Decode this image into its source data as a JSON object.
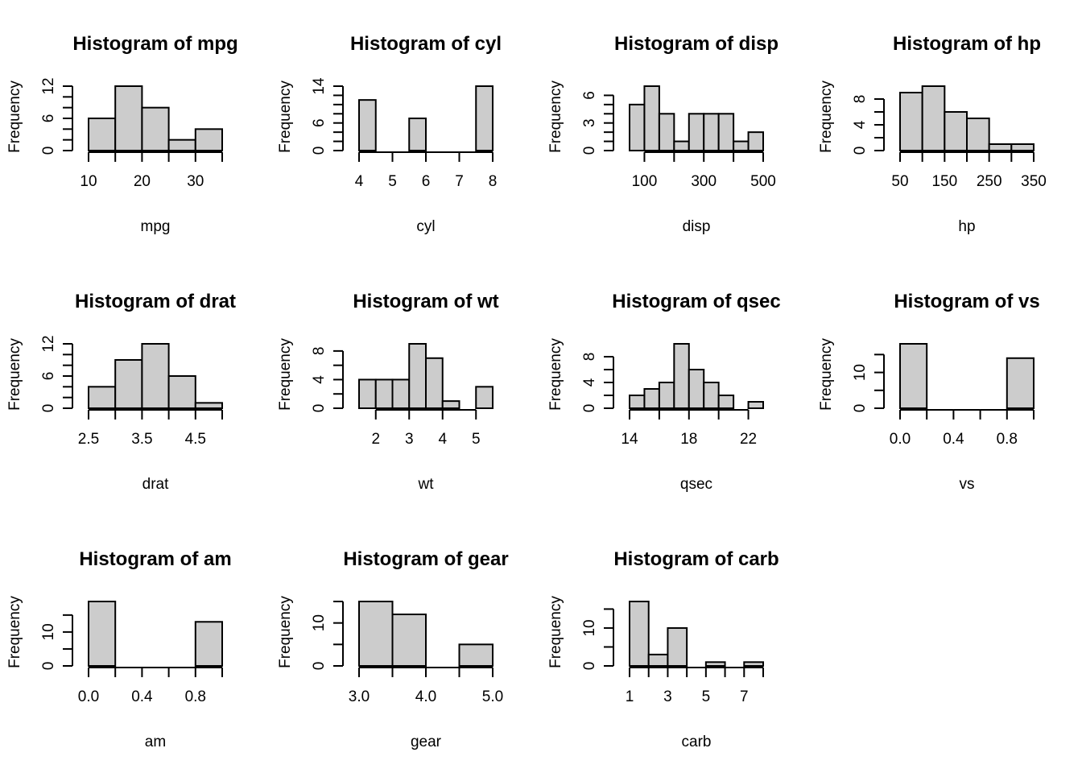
{
  "colors": {
    "bar_fill": "#cccccc",
    "stroke": "#000000",
    "background": "#ffffff"
  },
  "chart_data": [
    {
      "type": "bar",
      "title": "Histogram of mpg",
      "xlabel": "mpg",
      "ylabel": "Frequency",
      "breaks": [
        10,
        15,
        20,
        25,
        30,
        35
      ],
      "values": [
        6,
        12,
        8,
        2,
        4
      ],
      "xlim": [
        10,
        35
      ],
      "ylim": [
        0,
        12
      ],
      "xticks": [
        10,
        15,
        20,
        25,
        30,
        35
      ],
      "xtick_labels": [
        "10",
        "",
        "20",
        "",
        "30",
        ""
      ],
      "yticks": [
        0,
        2,
        4,
        6,
        8,
        10,
        12
      ],
      "ytick_labels": [
        "0",
        "",
        "",
        "6",
        "",
        "",
        "12"
      ]
    },
    {
      "type": "bar",
      "title": "Histogram of cyl",
      "xlabel": "cyl",
      "ylabel": "Frequency",
      "breaks": [
        4,
        4.5,
        5,
        5.5,
        6,
        6.5,
        7,
        7.5,
        8
      ],
      "values": [
        11,
        0,
        0,
        7,
        0,
        0,
        0,
        14
      ],
      "xlim": [
        4,
        8
      ],
      "ylim": [
        0,
        14
      ],
      "xticks": [
        4,
        5,
        6,
        7,
        8
      ],
      "xtick_labels": [
        "4",
        "5",
        "6",
        "7",
        "8"
      ],
      "yticks": [
        0,
        2,
        4,
        6,
        8,
        10,
        12,
        14
      ],
      "ytick_labels": [
        "0",
        "",
        "",
        "6",
        "",
        "",
        "",
        "14"
      ]
    },
    {
      "type": "bar",
      "title": "Histogram of disp",
      "xlabel": "disp",
      "ylabel": "Frequency",
      "breaks": [
        50,
        100,
        150,
        200,
        250,
        300,
        350,
        400,
        450,
        500
      ],
      "values": [
        5,
        7,
        4,
        1,
        4,
        4,
        4,
        1,
        2
      ],
      "xlim": [
        50,
        500
      ],
      "ylim": [
        0,
        7
      ],
      "xticks": [
        100,
        200,
        300,
        400,
        500
      ],
      "xtick_labels": [
        "100",
        "",
        "300",
        "",
        "500"
      ],
      "yticks": [
        0,
        1,
        2,
        3,
        4,
        5,
        6
      ],
      "ytick_labels": [
        "0",
        "",
        "",
        "3",
        "",
        "",
        "6"
      ]
    },
    {
      "type": "bar",
      "title": "Histogram of hp",
      "xlabel": "hp",
      "ylabel": "Frequency",
      "breaks": [
        50,
        100,
        150,
        200,
        250,
        300,
        350
      ],
      "values": [
        9,
        10,
        6,
        5,
        1,
        1
      ],
      "xlim": [
        50,
        350
      ],
      "ylim": [
        0,
        10
      ],
      "xticks": [
        50,
        100,
        150,
        200,
        250,
        300,
        350
      ],
      "xtick_labels": [
        "50",
        "",
        "150",
        "",
        "250",
        "",
        "350"
      ],
      "yticks": [
        0,
        2,
        4,
        6,
        8
      ],
      "ytick_labels": [
        "0",
        "",
        "4",
        "",
        "8"
      ]
    },
    {
      "type": "bar",
      "title": "Histogram of drat",
      "xlabel": "drat",
      "ylabel": "Frequency",
      "breaks": [
        2.5,
        3,
        3.5,
        4,
        4.5,
        5
      ],
      "values": [
        4,
        9,
        12,
        6,
        1
      ],
      "xlim": [
        2.5,
        5
      ],
      "ylim": [
        0,
        12
      ],
      "xticks": [
        2.5,
        3,
        3.5,
        4,
        4.5,
        5
      ],
      "xtick_labels": [
        "2.5",
        "",
        "3.5",
        "",
        "4.5",
        ""
      ],
      "yticks": [
        0,
        2,
        4,
        6,
        8,
        10,
        12
      ],
      "ytick_labels": [
        "0",
        "",
        "",
        "6",
        "",
        "",
        "12"
      ]
    },
    {
      "type": "bar",
      "title": "Histogram of wt",
      "xlabel": "wt",
      "ylabel": "Frequency",
      "breaks": [
        1.5,
        2,
        2.5,
        3,
        3.5,
        4,
        4.5,
        5,
        5.5
      ],
      "values": [
        4,
        4,
        4,
        9,
        7,
        1,
        0,
        3
      ],
      "xlim": [
        1.5,
        5.5
      ],
      "ylim": [
        0,
        9
      ],
      "xticks": [
        2,
        3,
        4,
        5
      ],
      "xtick_labels": [
        "2",
        "3",
        "4",
        "5"
      ],
      "yticks": [
        0,
        2,
        4,
        6,
        8
      ],
      "ytick_labels": [
        "0",
        "",
        "4",
        "",
        "8"
      ]
    },
    {
      "type": "bar",
      "title": "Histogram of qsec",
      "xlabel": "qsec",
      "ylabel": "Frequency",
      "breaks": [
        14,
        15,
        16,
        17,
        18,
        19,
        20,
        21,
        22,
        23
      ],
      "values": [
        2,
        3,
        4,
        10,
        6,
        4,
        2,
        0,
        1
      ],
      "xlim": [
        14,
        23
      ],
      "ylim": [
        0,
        10
      ],
      "xticks": [
        14,
        16,
        18,
        20,
        22
      ],
      "xtick_labels": [
        "14",
        "",
        "18",
        "",
        "22"
      ],
      "yticks": [
        0,
        2,
        4,
        6,
        8
      ],
      "ytick_labels": [
        "0",
        "",
        "4",
        "",
        "8"
      ]
    },
    {
      "type": "bar",
      "title": "Histogram of vs",
      "xlabel": "vs",
      "ylabel": "Frequency",
      "breaks": [
        0,
        0.2,
        0.4,
        0.6,
        0.8,
        1
      ],
      "values": [
        18,
        0,
        0,
        0,
        14
      ],
      "xlim": [
        0,
        1
      ],
      "ylim": [
        0,
        18
      ],
      "xticks": [
        0,
        0.2,
        0.4,
        0.6,
        0.8,
        1
      ],
      "xtick_labels": [
        "0.0",
        "",
        "0.4",
        "",
        "0.8",
        ""
      ],
      "yticks": [
        0,
        5,
        10,
        15
      ],
      "ytick_labels": [
        "0",
        "",
        "10",
        ""
      ]
    },
    {
      "type": "bar",
      "title": "Histogram of am",
      "xlabel": "am",
      "ylabel": "Frequency",
      "breaks": [
        0,
        0.2,
        0.4,
        0.6,
        0.8,
        1
      ],
      "values": [
        19,
        0,
        0,
        0,
        13
      ],
      "xlim": [
        0,
        1
      ],
      "ylim": [
        0,
        19
      ],
      "xticks": [
        0,
        0.2,
        0.4,
        0.6,
        0.8,
        1
      ],
      "xtick_labels": [
        "0.0",
        "",
        "0.4",
        "",
        "0.8",
        ""
      ],
      "yticks": [
        0,
        5,
        10,
        15
      ],
      "ytick_labels": [
        "0",
        "",
        "10",
        ""
      ]
    },
    {
      "type": "bar",
      "title": "Histogram of gear",
      "xlabel": "gear",
      "ylabel": "Frequency",
      "breaks": [
        3,
        3.5,
        4,
        4.5,
        5
      ],
      "values": [
        15,
        12,
        0,
        5
      ],
      "xlim": [
        3,
        5
      ],
      "ylim": [
        0,
        15
      ],
      "xticks": [
        3,
        3.5,
        4,
        4.5,
        5
      ],
      "xtick_labels": [
        "3.0",
        "",
        "4.0",
        "",
        "5.0"
      ],
      "yticks": [
        0,
        5,
        10,
        15
      ],
      "ytick_labels": [
        "0",
        "",
        "10",
        ""
      ]
    },
    {
      "type": "bar",
      "title": "Histogram of carb",
      "xlabel": "carb",
      "ylabel": "Frequency",
      "breaks": [
        1,
        2,
        3,
        4,
        5,
        6,
        7,
        8
      ],
      "values": [
        17,
        3,
        10,
        0,
        1,
        0,
        1
      ],
      "xlim": [
        1,
        8
      ],
      "ylim": [
        0,
        17
      ],
      "xticks": [
        1,
        2,
        3,
        4,
        5,
        6,
        7,
        8
      ],
      "xtick_labels": [
        "1",
        "",
        "3",
        "",
        "5",
        "",
        "7",
        ""
      ],
      "yticks": [
        0,
        5,
        10,
        15
      ],
      "ytick_labels": [
        "0",
        "",
        "10",
        ""
      ]
    }
  ]
}
